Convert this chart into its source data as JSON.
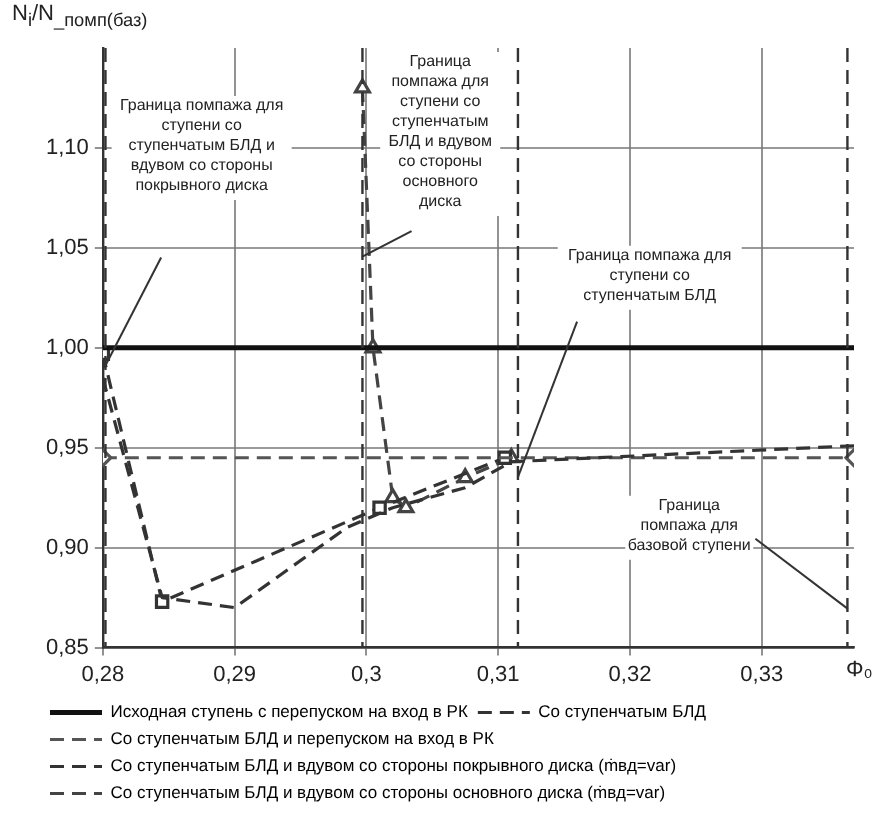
{
  "chart_data": {
    "type": "line",
    "xlabel": "Φ₀",
    "ylabel": "N$_{i}$/N$_{_помп(баз)}$",
    "xlim": [
      0.28,
      0.337
    ],
    "ylim": [
      0.85,
      1.15
    ],
    "xticks": [
      {
        "value": 0.28,
        "label": "0,28"
      },
      {
        "value": 0.29,
        "label": "0,29"
      },
      {
        "value": 0.3,
        "label": "0,3"
      },
      {
        "value": 0.31,
        "label": "0,31"
      },
      {
        "value": 0.32,
        "label": "0,32"
      },
      {
        "value": 0.33,
        "label": "0,33"
      }
    ],
    "yticks": [
      {
        "value": 0.85,
        "label": "0,85"
      },
      {
        "value": 0.9,
        "label": "0,90"
      },
      {
        "value": 0.95,
        "label": "0,95"
      },
      {
        "value": 1.0,
        "label": "1,00"
      },
      {
        "value": 1.05,
        "label": "1,05"
      },
      {
        "value": 1.1,
        "label": "1,10"
      }
    ],
    "grid": true,
    "legend": "bottom",
    "series": [
      {
        "name": "Исходная ступень с перепуском на вход в РК",
        "color": "#111111",
        "line_style": "solid",
        "marker": "none",
        "x": [
          0.28,
          0.337
        ],
        "values": [
          1.0,
          1.0
        ]
      },
      {
        "name": "Со ступенчатым БЛД",
        "color": "#333333",
        "line_style": "dashed",
        "marker": "none",
        "x": [
          0.28,
          0.2845,
          0.29,
          0.2985,
          0.302,
          0.3075,
          0.311,
          0.337
        ],
        "values": [
          0.985,
          0.875,
          0.87,
          0.91,
          0.92,
          0.93,
          0.943,
          0.951
        ]
      },
      {
        "name": "Со ступенчатым БЛД и перепуском на вход в РК",
        "color": "#555555",
        "line_style": "dashed",
        "marker": "diamond",
        "x": [
          0.28,
          0.337
        ],
        "values": [
          0.945,
          0.945
        ]
      },
      {
        "name": "Со ступенчатым БЛД и вдувом со стороны покрывного диска (ṁвд=var)",
        "color": "#333333",
        "line_style": "dashed",
        "marker": "square",
        "x": [
          0.28,
          0.2845,
          0.301,
          0.3105
        ],
        "values": [
          0.997,
          0.873,
          0.92,
          0.945
        ]
      },
      {
        "name": "Со ступенчатым БЛД и вдувом со стороны основного диска (ṁвд=var)",
        "color": "#444444",
        "line_style": "dashed",
        "marker": "triangle",
        "x": [
          0.2997,
          0.3005,
          0.302,
          0.303,
          0.3075,
          0.311
        ],
        "values": [
          1.13,
          1.0,
          0.925,
          0.92,
          0.935,
          0.945
        ]
      }
    ],
    "ref_lines": [
      {
        "axis": "x",
        "value": 0.2802,
        "label": "Граница помпажа для ступени со ступенчатым БЛД и вдувом со стороны покрывного диска",
        "line_style": "dashed"
      },
      {
        "axis": "x",
        "value": 0.2997,
        "label": "Граница помпажа для ступени со ступенчатым БЛД и вдувом со стороны основного диска",
        "line_style": "dashed"
      },
      {
        "axis": "x",
        "value": 0.3115,
        "label": "Граница помпажа для ступени со ступенчатым БЛД",
        "line_style": "dashed"
      },
      {
        "axis": "x",
        "value": 0.3365,
        "label": "Граница помпажа для базовой ступени",
        "line_style": "dashed"
      }
    ]
  }
}
